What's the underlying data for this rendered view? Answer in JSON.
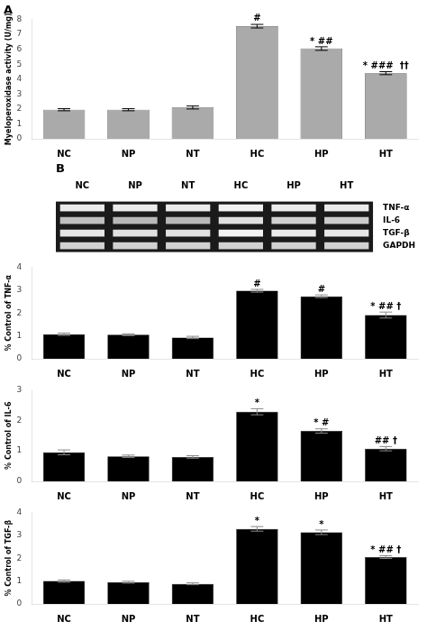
{
  "chart_data": [
    {
      "type": "bar",
      "title": "A",
      "categories": [
        "NC",
        "NP",
        "NT",
        "HC",
        "HP",
        "HT"
      ],
      "values": [
        1.95,
        1.95,
        2.1,
        7.55,
        6.05,
        4.4
      ],
      "errors": [
        0.07,
        0.07,
        0.1,
        0.12,
        0.12,
        0.1
      ],
      "color": "#aaaaaa",
      "ylabel": "Myeloperoxidase activity (U/mg)",
      "ylim": [
        0,
        8
      ],
      "yticks": [
        0,
        1,
        2,
        3,
        4,
        5,
        6,
        7,
        8
      ],
      "grid": false,
      "annotations": [
        {
          "text": "#",
          "x": "HC",
          "y": 7.75
        },
        {
          "text": "* ##",
          "x": "HP",
          "y": 6.22
        },
        {
          "text": "* ###  ††",
          "x": "HT",
          "y": 4.55
        }
      ]
    },
    {
      "type": "heatmap",
      "title": "B",
      "categories": [
        "NC",
        "NP",
        "NT",
        "HC",
        "HP",
        "HT"
      ],
      "rows": [
        "TNF-α",
        "IL-6",
        "TGF-β",
        "GAPDH"
      ],
      "cells": [
        [
          0.92,
          0.92,
          0.92,
          0.95,
          0.92,
          0.92
        ],
        [
          0.75,
          0.72,
          0.72,
          0.88,
          0.82,
          0.8
        ],
        [
          0.9,
          0.88,
          0.88,
          0.95,
          0.92,
          0.9
        ],
        [
          0.82,
          0.82,
          0.82,
          0.82,
          0.82,
          0.82
        ]
      ]
    },
    {
      "type": "bar",
      "categories": [
        "NC",
        "NP",
        "NT",
        "HC",
        "HP",
        "HT"
      ],
      "values": [
        1.07,
        1.05,
        0.93,
        2.97,
        2.73,
        1.91
      ],
      "errors": [
        0.05,
        0.04,
        0.05,
        0.06,
        0.06,
        0.13
      ],
      "color": "#000000",
      "ylabel": "% Control of TNF-α",
      "ylim": [
        0,
        4
      ],
      "yticks": [
        0,
        1,
        2,
        3,
        4
      ],
      "grid": false,
      "annotations": [
        {
          "text": "#",
          "x": "HC",
          "y": 3.06
        },
        {
          "text": "#",
          "x": "HP",
          "y": 2.83
        },
        {
          "text": "* ## †",
          "x": "HT",
          "y": 2.08
        }
      ]
    },
    {
      "type": "bar",
      "categories": [
        "NC",
        "NP",
        "NT",
        "HC",
        "HP",
        "HT"
      ],
      "values": [
        0.95,
        0.82,
        0.8,
        2.28,
        1.65,
        1.07
      ],
      "errors": [
        0.08,
        0.04,
        0.04,
        0.1,
        0.07,
        0.07
      ],
      "color": "#000000",
      "ylabel": "% Control of IL-6",
      "ylim": [
        0,
        3
      ],
      "yticks": [
        0,
        1,
        2,
        3
      ],
      "grid": false,
      "annotations": [
        {
          "text": "*",
          "x": "HC",
          "y": 2.42
        },
        {
          "text": "* #",
          "x": "HP",
          "y": 1.76
        },
        {
          "text": "## †",
          "x": "HT",
          "y": 1.18
        }
      ]
    },
    {
      "type": "bar",
      "categories": [
        "NC",
        "NP",
        "NT",
        "HC",
        "HP",
        "HT"
      ],
      "values": [
        1.0,
        0.95,
        0.88,
        3.28,
        3.13,
        2.05
      ],
      "errors": [
        0.05,
        0.04,
        0.04,
        0.1,
        0.1,
        0.06
      ],
      "color": "#000000",
      "ylabel": "% Control of TGF-β",
      "ylim": [
        0,
        4
      ],
      "yticks": [
        0,
        1,
        2,
        3,
        4
      ],
      "grid": false,
      "annotations": [
        {
          "text": "*",
          "x": "HC",
          "y": 3.42
        },
        {
          "text": "*",
          "x": "HP",
          "y": 3.27
        },
        {
          "text": "* ## †",
          "x": "HT",
          "y": 2.15
        }
      ]
    }
  ]
}
